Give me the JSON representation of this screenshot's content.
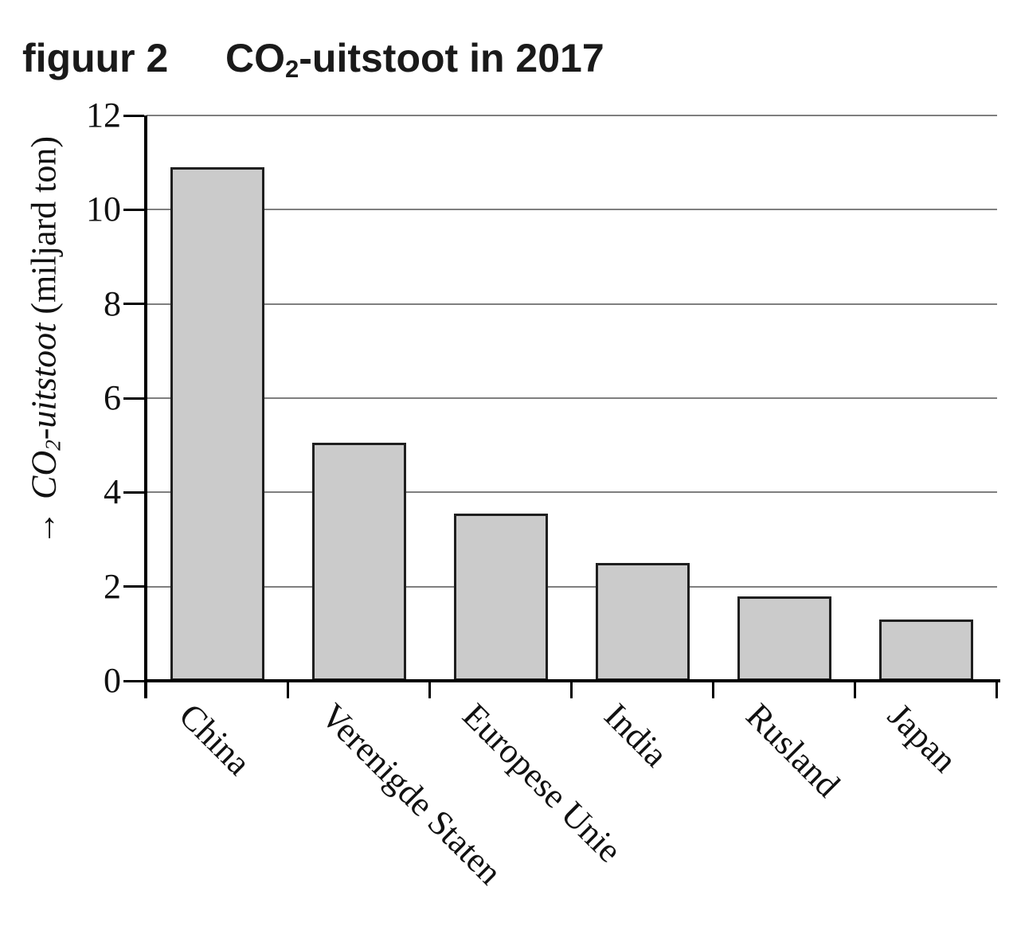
{
  "header": {
    "figure_label": "figuur 2",
    "title_co": "CO",
    "title_sub": "2",
    "title_rest": "-uitstoot in 2017"
  },
  "y_axis": {
    "arrow": "→",
    "label_co": "CO",
    "label_sub": "2",
    "label_rest": "-uitstoot",
    "label_unit": " (miljard ton)"
  },
  "chart_data": {
    "type": "bar",
    "title": "CO₂-uitstoot in 2017",
    "categories": [
      "China",
      "Verenigde Staten",
      "Europese Unie",
      "India",
      "Rusland",
      "Japan"
    ],
    "values": [
      10.9,
      5.05,
      3.55,
      2.5,
      1.8,
      1.3
    ],
    "ylabel": "CO₂-uitstoot (miljard ton)",
    "yticks": [
      0,
      2,
      4,
      6,
      8,
      10,
      12
    ],
    "ylim": [
      0,
      12
    ],
    "gridlines": [
      2,
      4,
      6,
      8,
      10,
      12
    ],
    "grid_on": true,
    "legend": "none",
    "bar_fill": "#cbcbcb",
    "bar_border": "#1f1f1f",
    "grid_color": "#7f7f7f",
    "axis_color": "#000000"
  }
}
